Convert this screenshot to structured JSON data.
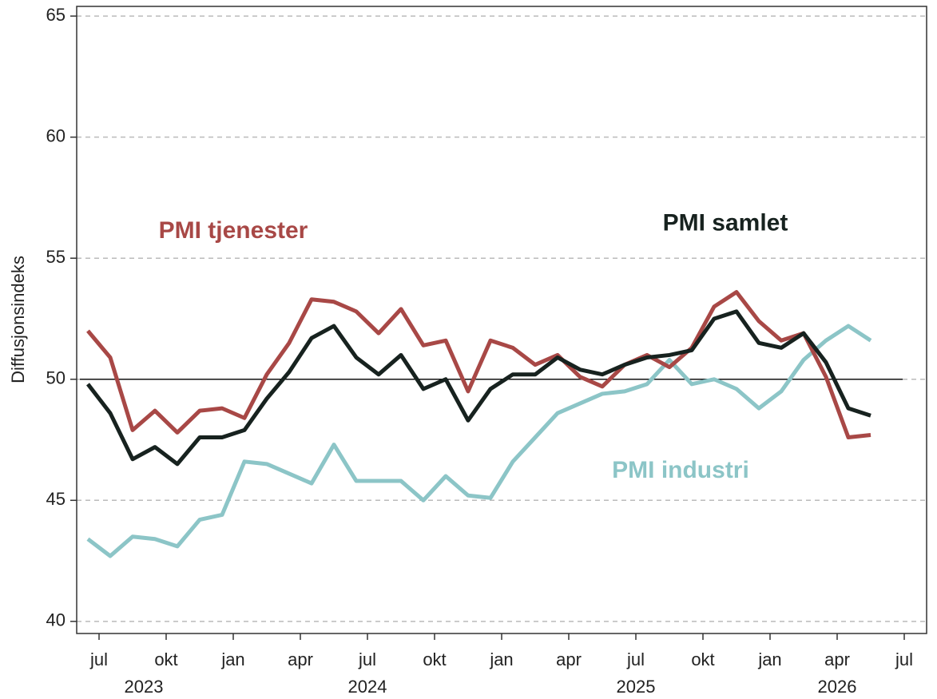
{
  "chart_data": {
    "type": "line",
    "y_label": "Diffusjonsindeks",
    "x": [
      "2023-06",
      "2023-07",
      "2023-08",
      "2023-09",
      "2023-10",
      "2023-11",
      "2023-12",
      "2024-01",
      "2024-02",
      "2024-03",
      "2024-04",
      "2024-05",
      "2024-06",
      "2024-07",
      "2024-08",
      "2024-09",
      "2024-10",
      "2024-11",
      "2024-12",
      "2025-01",
      "2025-02",
      "2025-03",
      "2025-04",
      "2025-05",
      "2025-06",
      "2025-07",
      "2025-08",
      "2025-09",
      "2025-10",
      "2025-11",
      "2025-12",
      "2026-01",
      "2026-02",
      "2026-03",
      "2026-04",
      "2026-05"
    ],
    "series": [
      {
        "name": "PMI industri",
        "color": "#8cc5c7",
        "values": [
          43.4,
          42.7,
          43.5,
          43.4,
          43.1,
          44.2,
          44.4,
          46.6,
          46.5,
          46.1,
          45.7,
          47.3,
          45.8,
          45.8,
          45.8,
          45.0,
          46.0,
          45.2,
          45.1,
          46.6,
          47.6,
          48.6,
          49.0,
          49.4,
          49.5,
          49.8,
          50.8,
          49.8,
          50.0,
          49.6,
          48.8,
          49.5,
          50.8,
          51.6,
          52.2,
          51.6
        ]
      },
      {
        "name": "PMI tjenester",
        "color": "#a84846",
        "values": [
          52.0,
          50.9,
          47.9,
          48.7,
          47.8,
          48.7,
          48.8,
          48.4,
          50.2,
          51.5,
          53.3,
          53.2,
          52.8,
          51.9,
          52.9,
          51.4,
          51.6,
          49.5,
          51.6,
          51.3,
          50.6,
          51.0,
          50.1,
          49.7,
          50.6,
          51.0,
          50.5,
          51.3,
          53.0,
          53.6,
          52.4,
          51.6,
          51.9,
          50.1,
          47.6,
          47.7
        ]
      },
      {
        "name": "PMI samlet",
        "color": "#17221f",
        "values": [
          49.8,
          48.6,
          46.7,
          47.2,
          46.5,
          47.6,
          47.6,
          47.9,
          49.2,
          50.3,
          51.7,
          52.2,
          50.9,
          50.2,
          51.0,
          49.6,
          50.0,
          48.3,
          49.6,
          50.2,
          50.2,
          50.9,
          50.4,
          50.2,
          50.6,
          50.9,
          51.0,
          51.2,
          52.5,
          52.8,
          51.5,
          51.3,
          51.9,
          50.7,
          48.8,
          48.5
        ]
      }
    ],
    "labels": [
      {
        "series": 1,
        "x": "2024-01",
        "y": 56.1
      },
      {
        "series": 2,
        "x": "2025-11",
        "y": 56.4
      },
      {
        "series": 0,
        "x": "2025-09",
        "y": 46.2
      }
    ],
    "hline": 50,
    "xlim": [
      "2023-06",
      "2026-08"
    ],
    "xticks": [
      {
        "value": "2023-07",
        "label": "jul"
      },
      {
        "value": "2023-10",
        "label": "okt"
      },
      {
        "value": "2024-01",
        "label": "jan"
      },
      {
        "value": "2024-04",
        "label": "apr"
      },
      {
        "value": "2024-07",
        "label": "jul"
      },
      {
        "value": "2024-10",
        "label": "okt"
      },
      {
        "value": "2025-01",
        "label": "jan"
      },
      {
        "value": "2025-04",
        "label": "apr"
      },
      {
        "value": "2025-07",
        "label": "jul"
      },
      {
        "value": "2025-10",
        "label": "okt"
      },
      {
        "value": "2026-01",
        "label": "jan"
      },
      {
        "value": "2026-04",
        "label": "apr"
      },
      {
        "value": "2026-07",
        "label": "jul"
      }
    ],
    "year_labels": [
      {
        "value": "2023-09",
        "label": "2023"
      },
      {
        "value": "2024-07",
        "label": "2024"
      },
      {
        "value": "2025-07",
        "label": "2025"
      },
      {
        "value": "2026-04",
        "label": "2026"
      }
    ],
    "ylim": [
      39.5,
      65.4
    ],
    "yticks": [
      40,
      45,
      50,
      55,
      60,
      65
    ],
    "grid": true
  }
}
